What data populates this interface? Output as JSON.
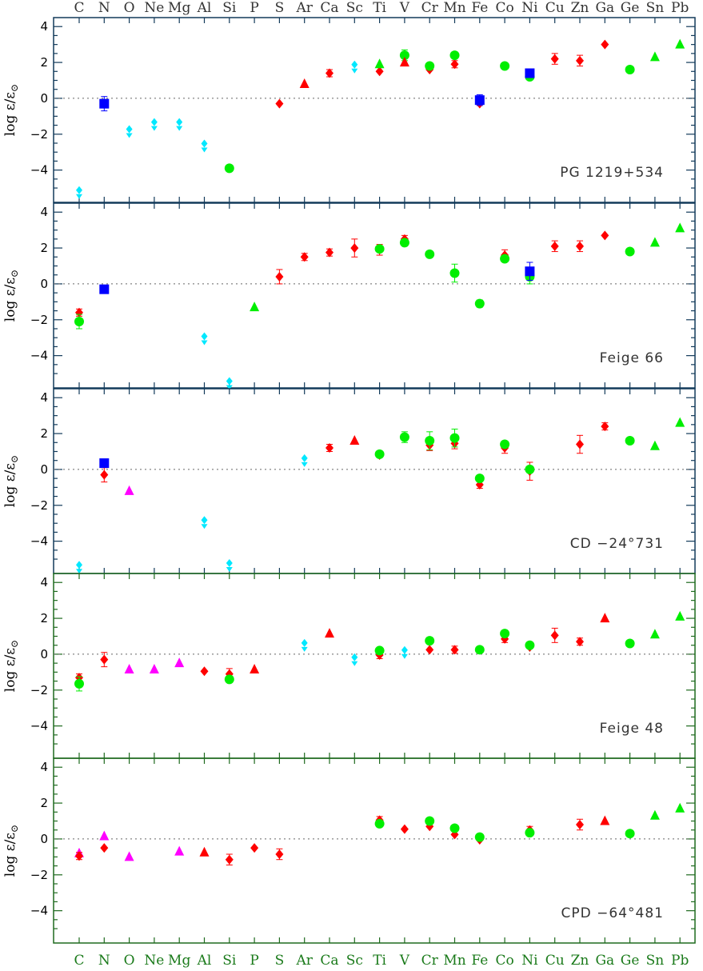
{
  "chart_data": {
    "type": "scatter",
    "elements": [
      "C",
      "N",
      "O",
      "Ne",
      "Mg",
      "Al",
      "Si",
      "P",
      "S",
      "Ar",
      "Ca",
      "Sc",
      "Ti",
      "V",
      "Cr",
      "Mn",
      "Fe",
      "Co",
      "Ni",
      "Cu",
      "Zn",
      "Ga",
      "Ge",
      "Sn",
      "Pb"
    ],
    "y_label_prefix": "log ",
    "y_label_main": "ε/ε",
    "y_label_sub": "⊙",
    "ylim": [
      -5.8,
      4.5
    ],
    "yticks": [
      4,
      2,
      0,
      -2,
      -4
    ],
    "zero_line": "dotted",
    "colors": {
      "red": "#ff0000",
      "green": "#00ee00",
      "blue": "#0000ff",
      "cyan": "#00e8ff",
      "magenta": "#ff00ff"
    },
    "panels": [
      {
        "star": "PG 1219+534",
        "frame_color": "#123a5a",
        "points": [
          {
            "el": "C",
            "y": -5.3,
            "c": "cyan",
            "m": "upper"
          },
          {
            "el": "N",
            "y": -0.3,
            "c": "blue",
            "m": "square",
            "err": 0.4
          },
          {
            "el": "O",
            "y": -1.9,
            "c": "cyan",
            "m": "upper"
          },
          {
            "el": "Ne",
            "y": -1.5,
            "c": "cyan",
            "m": "upper"
          },
          {
            "el": "Mg",
            "y": -1.5,
            "c": "cyan",
            "m": "upper"
          },
          {
            "el": "Al",
            "y": -2.7,
            "c": "cyan",
            "m": "upper"
          },
          {
            "el": "Si",
            "y": -3.9,
            "c": "green",
            "m": "circle"
          },
          {
            "el": "S",
            "y": -0.3,
            "c": "red",
            "m": "diamond"
          },
          {
            "el": "Ar",
            "y": 0.8,
            "c": "red",
            "m": "triangle"
          },
          {
            "el": "Ca",
            "y": 1.4,
            "c": "red",
            "m": "diamond",
            "err": 0.2
          },
          {
            "el": "Sc",
            "y": 1.7,
            "c": "cyan",
            "m": "upper"
          },
          {
            "el": "Ti",
            "y": 1.5,
            "c": "red",
            "m": "diamond"
          },
          {
            "el": "Ti",
            "y": 1.9,
            "c": "green",
            "m": "triangle"
          },
          {
            "el": "V",
            "y": 2.4,
            "c": "green",
            "m": "circle",
            "err": 0.3
          },
          {
            "el": "V",
            "y": 2.0,
            "c": "red",
            "m": "triangle"
          },
          {
            "el": "Cr",
            "y": 1.6,
            "c": "red",
            "m": "diamond"
          },
          {
            "el": "Cr",
            "y": 1.8,
            "c": "green",
            "m": "circle"
          },
          {
            "el": "Mn",
            "y": 1.9,
            "c": "red",
            "m": "diamond",
            "err": 0.2
          },
          {
            "el": "Mn",
            "y": 2.4,
            "c": "green",
            "m": "circle"
          },
          {
            "el": "Fe",
            "y": -0.3,
            "c": "red",
            "m": "diamond"
          },
          {
            "el": "Fe",
            "y": -0.1,
            "c": "blue",
            "m": "square",
            "err": 0.3
          },
          {
            "el": "Co",
            "y": 1.8,
            "c": "green",
            "m": "circle"
          },
          {
            "el": "Ni",
            "y": 1.2,
            "c": "green",
            "m": "circle"
          },
          {
            "el": "Ni",
            "y": 1.4,
            "c": "blue",
            "m": "square"
          },
          {
            "el": "Cu",
            "y": 2.2,
            "c": "red",
            "m": "diamond",
            "err": 0.3
          },
          {
            "el": "Zn",
            "y": 2.1,
            "c": "red",
            "m": "diamond",
            "err": 0.3
          },
          {
            "el": "Ga",
            "y": 3.0,
            "c": "red",
            "m": "diamond"
          },
          {
            "el": "Ge",
            "y": 1.6,
            "c": "green",
            "m": "circle"
          },
          {
            "el": "Sn",
            "y": 2.3,
            "c": "green",
            "m": "triangle"
          },
          {
            "el": "Pb",
            "y": 3.0,
            "c": "green",
            "m": "triangle"
          }
        ]
      },
      {
        "star": "Feige 66",
        "frame_color": "#123a5a",
        "points": [
          {
            "el": "C",
            "y": -1.6,
            "c": "red",
            "m": "diamond",
            "err": 0.2
          },
          {
            "el": "C",
            "y": -2.1,
            "c": "green",
            "m": "circle",
            "err": 0.4
          },
          {
            "el": "N",
            "y": -0.3,
            "c": "blue",
            "m": "square",
            "err": 0.2
          },
          {
            "el": "Al",
            "y": -3.1,
            "c": "cyan",
            "m": "upper"
          },
          {
            "el": "Si",
            "y": -5.6,
            "c": "cyan",
            "m": "upper"
          },
          {
            "el": "P",
            "y": -1.3,
            "c": "green",
            "m": "triangle"
          },
          {
            "el": "S",
            "y": 0.4,
            "c": "red",
            "m": "diamond",
            "err": 0.4
          },
          {
            "el": "Ar",
            "y": 1.5,
            "c": "red",
            "m": "diamond",
            "err": 0.2
          },
          {
            "el": "Ca",
            "y": 1.75,
            "c": "red",
            "m": "diamond",
            "err": 0.2
          },
          {
            "el": "Sc",
            "y": 2.0,
            "c": "red",
            "m": "diamond",
            "err": 0.5
          },
          {
            "el": "Ti",
            "y": 1.9,
            "c": "red",
            "m": "diamond",
            "err": 0.3
          },
          {
            "el": "Ti",
            "y": 1.95,
            "c": "green",
            "m": "circle"
          },
          {
            "el": "V",
            "y": 2.5,
            "c": "red",
            "m": "diamond",
            "err": 0.2
          },
          {
            "el": "V",
            "y": 2.3,
            "c": "green",
            "m": "circle"
          },
          {
            "el": "Cr",
            "y": 1.65,
            "c": "green",
            "m": "circle"
          },
          {
            "el": "Mn",
            "y": 0.6,
            "c": "green",
            "m": "circle",
            "err": 0.5
          },
          {
            "el": "Fe",
            "y": -1.1,
            "c": "green",
            "m": "circle",
            "err": 0.2
          },
          {
            "el": "Co",
            "y": 1.6,
            "c": "red",
            "m": "diamond",
            "err": 0.3
          },
          {
            "el": "Co",
            "y": 1.4,
            "c": "green",
            "m": "circle"
          },
          {
            "el": "Ni",
            "y": 0.4,
            "c": "green",
            "m": "circle",
            "err": 0.4
          },
          {
            "el": "Ni",
            "y": 0.7,
            "c": "blue",
            "m": "square",
            "err": 0.5
          },
          {
            "el": "Cu",
            "y": 2.1,
            "c": "red",
            "m": "diamond",
            "err": 0.3
          },
          {
            "el": "Zn",
            "y": 2.1,
            "c": "red",
            "m": "diamond",
            "err": 0.3
          },
          {
            "el": "Ga",
            "y": 2.7,
            "c": "red",
            "m": "diamond"
          },
          {
            "el": "Ge",
            "y": 1.8,
            "c": "green",
            "m": "circle"
          },
          {
            "el": "Sn",
            "y": 2.3,
            "c": "green",
            "m": "triangle"
          },
          {
            "el": "Pb",
            "y": 3.1,
            "c": "green",
            "m": "triangle"
          }
        ]
      },
      {
        "star": "CD −24°731",
        "frame_color": "#123a5a",
        "points": [
          {
            "el": "C",
            "y": -5.5,
            "c": "cyan",
            "m": "upper"
          },
          {
            "el": "N",
            "y": -0.3,
            "c": "red",
            "m": "diamond",
            "err": 0.4
          },
          {
            "el": "N",
            "y": 0.35,
            "c": "blue",
            "m": "square"
          },
          {
            "el": "O",
            "y": -1.2,
            "c": "magenta",
            "m": "triangle"
          },
          {
            "el": "Al",
            "y": -3.0,
            "c": "cyan",
            "m": "upper"
          },
          {
            "el": "Si",
            "y": -5.4,
            "c": "cyan",
            "m": "upper"
          },
          {
            "el": "Ar",
            "y": 0.45,
            "c": "cyan",
            "m": "upper"
          },
          {
            "el": "Ca",
            "y": 1.2,
            "c": "red",
            "m": "diamond",
            "err": 0.2
          },
          {
            "el": "Sc",
            "y": 1.6,
            "c": "red",
            "m": "triangle"
          },
          {
            "el": "Ti",
            "y": 0.8,
            "c": "red",
            "m": "diamond"
          },
          {
            "el": "Ti",
            "y": 0.85,
            "c": "green",
            "m": "circle"
          },
          {
            "el": "V",
            "y": 1.8,
            "c": "green",
            "m": "circle",
            "err": 0.3
          },
          {
            "el": "Cr",
            "y": 1.35,
            "c": "red",
            "m": "diamond",
            "err": 0.3
          },
          {
            "el": "Cr",
            "y": 1.6,
            "c": "green",
            "m": "circle",
            "err": 0.5
          },
          {
            "el": "Mn",
            "y": 1.45,
            "c": "red",
            "m": "diamond",
            "err": 0.3
          },
          {
            "el": "Mn",
            "y": 1.75,
            "c": "green",
            "m": "circle",
            "err": 0.5
          },
          {
            "el": "Fe",
            "y": -0.85,
            "c": "red",
            "m": "diamond",
            "err": 0.2
          },
          {
            "el": "Fe",
            "y": -0.5,
            "c": "green",
            "m": "circle"
          },
          {
            "el": "Co",
            "y": 1.2,
            "c": "red",
            "m": "diamond",
            "err": 0.3
          },
          {
            "el": "Co",
            "y": 1.4,
            "c": "green",
            "m": "circle"
          },
          {
            "el": "Ni",
            "y": -0.1,
            "c": "red",
            "m": "diamond",
            "err": 0.5
          },
          {
            "el": "Ni",
            "y": 0.0,
            "c": "green",
            "m": "circle"
          },
          {
            "el": "Zn",
            "y": 1.4,
            "c": "red",
            "m": "diamond",
            "err": 0.5
          },
          {
            "el": "Ga",
            "y": 2.4,
            "c": "red",
            "m": "diamond",
            "err": 0.2
          },
          {
            "el": "Ge",
            "y": 1.6,
            "c": "green",
            "m": "circle"
          },
          {
            "el": "Sn",
            "y": 1.3,
            "c": "green",
            "m": "triangle"
          },
          {
            "el": "Pb",
            "y": 2.6,
            "c": "green",
            "m": "triangle"
          }
        ]
      },
      {
        "star": "Feige 48",
        "frame_color": "#1e6a1e",
        "points": [
          {
            "el": "C",
            "y": -1.3,
            "c": "red",
            "m": "diamond",
            "err": 0.2
          },
          {
            "el": "C",
            "y": -1.65,
            "c": "green",
            "m": "circle",
            "err": 0.4
          },
          {
            "el": "N",
            "y": -0.3,
            "c": "red",
            "m": "diamond",
            "err": 0.4
          },
          {
            "el": "O",
            "y": -0.85,
            "c": "magenta",
            "m": "triangle"
          },
          {
            "el": "Ne",
            "y": -0.85,
            "c": "magenta",
            "m": "triangle"
          },
          {
            "el": "Mg",
            "y": -0.5,
            "c": "magenta",
            "m": "triangle"
          },
          {
            "el": "Al",
            "y": -0.95,
            "c": "red",
            "m": "diamond"
          },
          {
            "el": "Si",
            "y": -1.1,
            "c": "red",
            "m": "diamond",
            "err": 0.3
          },
          {
            "el": "Si",
            "y": -1.4,
            "c": "green",
            "m": "circle"
          },
          {
            "el": "P",
            "y": -0.85,
            "c": "red",
            "m": "triangle"
          },
          {
            "el": "Ar",
            "y": 0.45,
            "c": "cyan",
            "m": "upper"
          },
          {
            "el": "Ca",
            "y": 1.15,
            "c": "red",
            "m": "triangle"
          },
          {
            "el": "Sc",
            "y": -0.35,
            "c": "cyan",
            "m": "upper"
          },
          {
            "el": "Ti",
            "y": -0.05,
            "c": "red",
            "m": "diamond",
            "err": 0.2
          },
          {
            "el": "Ti",
            "y": 0.2,
            "c": "green",
            "m": "circle"
          },
          {
            "el": "V",
            "y": 0.05,
            "c": "cyan",
            "m": "upper"
          },
          {
            "el": "Cr",
            "y": 0.25,
            "c": "red",
            "m": "diamond"
          },
          {
            "el": "Cr",
            "y": 0.75,
            "c": "green",
            "m": "circle"
          },
          {
            "el": "Mn",
            "y": 0.25,
            "c": "red",
            "m": "diamond",
            "err": 0.2
          },
          {
            "el": "Fe",
            "y": 0.25,
            "c": "green",
            "m": "circle"
          },
          {
            "el": "Co",
            "y": 0.85,
            "c": "red",
            "m": "diamond",
            "err": 0.2
          },
          {
            "el": "Co",
            "y": 1.15,
            "c": "green",
            "m": "circle"
          },
          {
            "el": "Ni",
            "y": 0.4,
            "c": "red",
            "m": "diamond"
          },
          {
            "el": "Ni",
            "y": 0.5,
            "c": "green",
            "m": "circle"
          },
          {
            "el": "Cu",
            "y": 1.05,
            "c": "red",
            "m": "diamond",
            "err": 0.4
          },
          {
            "el": "Zn",
            "y": 0.7,
            "c": "red",
            "m": "diamond",
            "err": 0.2
          },
          {
            "el": "Ga",
            "y": 2.0,
            "c": "red",
            "m": "triangle"
          },
          {
            "el": "Ge",
            "y": 0.6,
            "c": "green",
            "m": "circle"
          },
          {
            "el": "Sn",
            "y": 1.1,
            "c": "green",
            "m": "triangle"
          },
          {
            "el": "Pb",
            "y": 2.1,
            "c": "green",
            "m": "triangle"
          }
        ]
      },
      {
        "star": "CPD −64°481",
        "frame_color": "#1e6a1e",
        "points": [
          {
            "el": "C",
            "y": -0.8,
            "c": "magenta",
            "m": "triangle"
          },
          {
            "el": "C",
            "y": -0.95,
            "c": "red",
            "m": "diamond",
            "err": 0.2
          },
          {
            "el": "N",
            "y": -0.5,
            "c": "red",
            "m": "diamond"
          },
          {
            "el": "N",
            "y": 0.15,
            "c": "magenta",
            "m": "triangle"
          },
          {
            "el": "O",
            "y": -1.0,
            "c": "magenta",
            "m": "triangle"
          },
          {
            "el": "Mg",
            "y": -0.7,
            "c": "magenta",
            "m": "triangle"
          },
          {
            "el": "Al",
            "y": -0.75,
            "c": "red",
            "m": "triangle"
          },
          {
            "el": "Si",
            "y": -1.15,
            "c": "red",
            "m": "diamond",
            "err": 0.3
          },
          {
            "el": "P",
            "y": -0.5,
            "c": "red",
            "m": "diamond"
          },
          {
            "el": "S",
            "y": -0.85,
            "c": "red",
            "m": "diamond",
            "err": 0.3
          },
          {
            "el": "Ti",
            "y": 1.05,
            "c": "red",
            "m": "diamond",
            "err": 0.2
          },
          {
            "el": "Ti",
            "y": 0.85,
            "c": "green",
            "m": "circle"
          },
          {
            "el": "V",
            "y": 0.55,
            "c": "red",
            "m": "diamond"
          },
          {
            "el": "Cr",
            "y": 0.7,
            "c": "red",
            "m": "diamond"
          },
          {
            "el": "Cr",
            "y": 1.0,
            "c": "green",
            "m": "circle"
          },
          {
            "el": "Mn",
            "y": 0.25,
            "c": "red",
            "m": "diamond"
          },
          {
            "el": "Mn",
            "y": 0.6,
            "c": "green",
            "m": "circle"
          },
          {
            "el": "Fe",
            "y": -0.05,
            "c": "red",
            "m": "diamond"
          },
          {
            "el": "Fe",
            "y": 0.1,
            "c": "green",
            "m": "circle"
          },
          {
            "el": "Ni",
            "y": 0.5,
            "c": "red",
            "m": "diamond",
            "err": 0.2
          },
          {
            "el": "Ni",
            "y": 0.35,
            "c": "green",
            "m": "circle"
          },
          {
            "el": "Zn",
            "y": 0.8,
            "c": "red",
            "m": "diamond",
            "err": 0.3
          },
          {
            "el": "Ga",
            "y": 1.0,
            "c": "red",
            "m": "triangle"
          },
          {
            "el": "Ge",
            "y": 0.3,
            "c": "green",
            "m": "circle"
          },
          {
            "el": "Sn",
            "y": 1.3,
            "c": "green",
            "m": "triangle"
          },
          {
            "el": "Pb",
            "y": 1.7,
            "c": "green",
            "m": "triangle"
          }
        ]
      }
    ]
  }
}
